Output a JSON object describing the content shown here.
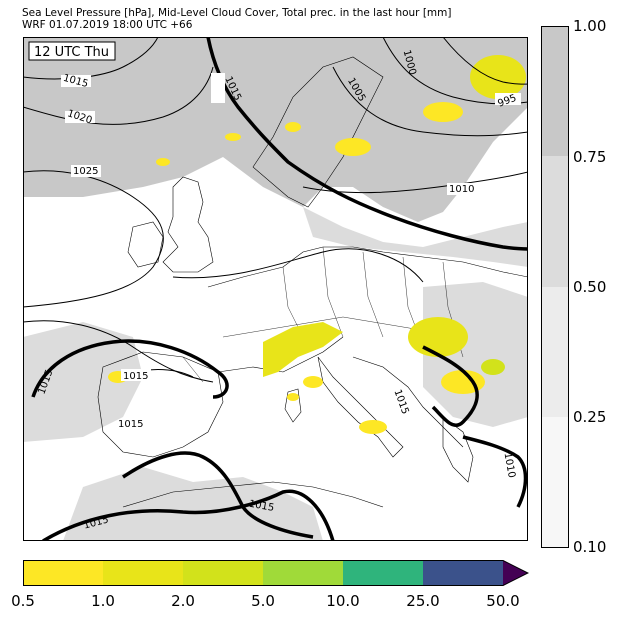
{
  "header": {
    "line1": "Sea Level Pressure [hPa], Mid-Level Cloud Cover, Total prec. in the last hour [mm]",
    "line2": "WRF 01.07.2019 18:00 UTC +66"
  },
  "map": {
    "time_badge": "12 UTC Thu",
    "isobar_labels": [
      "1015",
      "1020",
      "1025",
      "1015",
      "1010",
      "1005",
      "1000",
      "995",
      "1015",
      "1015",
      "1015",
      "1015",
      "1015",
      "1015",
      "1010"
    ]
  },
  "cloud_colorbar": {
    "labels": [
      "1.00",
      "0.75",
      "0.50",
      "0.25",
      "0.10"
    ],
    "colors": [
      "#c8c8c8",
      "#dcdcdc",
      "#ececec",
      "#f7f7f7"
    ]
  },
  "precip_colorbar": {
    "labels": [
      "0.5",
      "1.0",
      "2.0",
      "5.0",
      "10.0",
      "25.0",
      "50.0"
    ],
    "colors": [
      "#fde725",
      "#e8e419",
      "#d2e21b",
      "#a0da39",
      "#2fb47c",
      "#3b528b",
      "#440154"
    ]
  }
}
